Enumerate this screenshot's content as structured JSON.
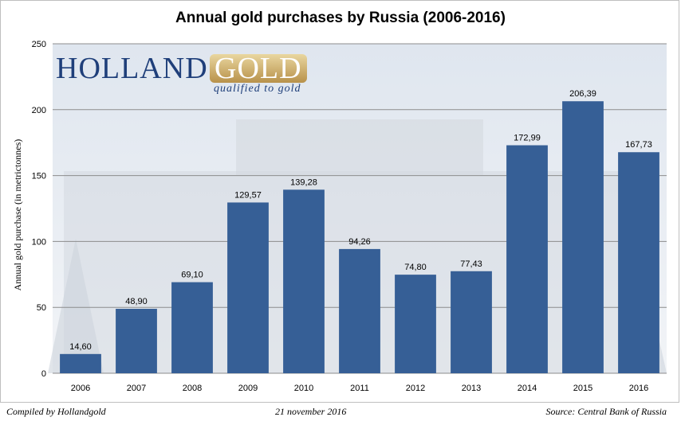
{
  "colors": {
    "bar": "#365f96",
    "grid": "#8c8c8c",
    "photo_sky": "#e8edf4",
    "photo_building": "#d4d9e0"
  },
  "logo": {
    "name_part1": "HOLLAND",
    "name_part2": "GOLD",
    "tagline": "qualified to gold"
  },
  "footer": {
    "left": "Compiled by Hollandgold",
    "center": "21 november 2016",
    "right": "Source: Central Bank of Russia"
  },
  "chart_data": {
    "type": "bar",
    "title": "Annual gold purchases by Russia (2006-2016)",
    "xlabel": "",
    "ylabel": "Annual gold purchase (in metrictonnes)",
    "categories": [
      "2006",
      "2007",
      "2008",
      "2009",
      "2010",
      "2011",
      "2012",
      "2013",
      "2014",
      "2015",
      "2016"
    ],
    "values": [
      14.6,
      48.9,
      69.1,
      129.57,
      139.28,
      94.26,
      74.8,
      77.43,
      172.99,
      206.39,
      167.73
    ],
    "data_labels": [
      "14,60",
      "48,90",
      "69,10",
      "129,57",
      "139,28",
      "94,26",
      "74,80",
      "77,43",
      "172,99",
      "206,39",
      "167,73"
    ],
    "ylim": [
      0,
      250
    ],
    "yticks": [
      0,
      50,
      100,
      150,
      200,
      250
    ],
    "grid": true,
    "legend": "none"
  }
}
